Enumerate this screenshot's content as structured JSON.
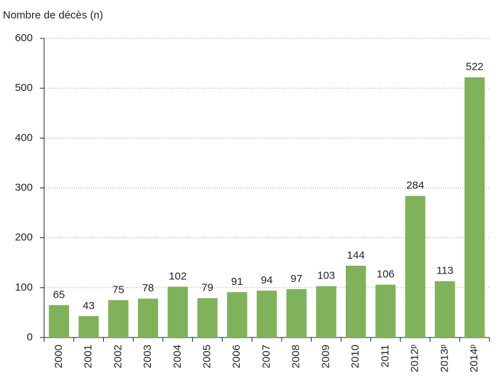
{
  "chart_data": {
    "type": "bar",
    "y_label": "Nombre de décès (n)",
    "categories": [
      "2000",
      "2001",
      "2002",
      "2003",
      "2004",
      "2005",
      "2006",
      "2007",
      "2008",
      "2009",
      "2010",
      "2011",
      "2012ᵖ",
      "2013ᵖ",
      "2014ᵖ"
    ],
    "values": [
      65,
      43,
      75,
      78,
      102,
      79,
      91,
      94,
      97,
      103,
      144,
      106,
      284,
      113,
      522
    ],
    "color": "#80b25c",
    "ylim": [
      0,
      600
    ],
    "yticks": [
      0,
      100,
      200,
      300,
      400,
      500,
      600
    ],
    "grid": true
  }
}
